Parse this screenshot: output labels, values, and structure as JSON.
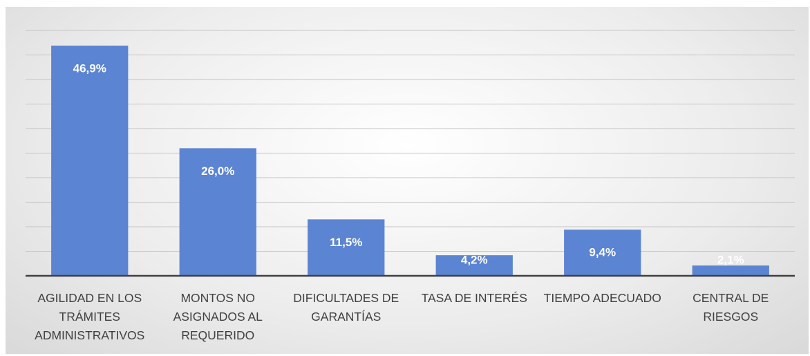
{
  "chart_data": {
    "type": "bar",
    "categories": [
      "AGILIDAD EN LOS TRÁMITES ADMINISTRATIVOS",
      "MONTOS NO ASIGNADOS AL REQUERIDO",
      "DIFICULTADES DE GARANTÍAS",
      "TASA DE INTERÉS",
      "TIEMPO ADECUADO",
      "CENTRAL DE RIESGOS"
    ],
    "values": [
      46.9,
      26.0,
      11.5,
      4.2,
      9.4,
      2.1
    ],
    "value_labels": [
      "46,9%",
      "26,0%",
      "11,5%",
      "4,2%",
      "9,4%",
      "2,1%"
    ],
    "color": "#5b84d2",
    "ylim": [
      0,
      50
    ],
    "yticks": [
      0,
      5,
      10,
      15,
      20,
      25,
      30,
      35,
      40,
      45,
      50
    ],
    "grid": true
  }
}
